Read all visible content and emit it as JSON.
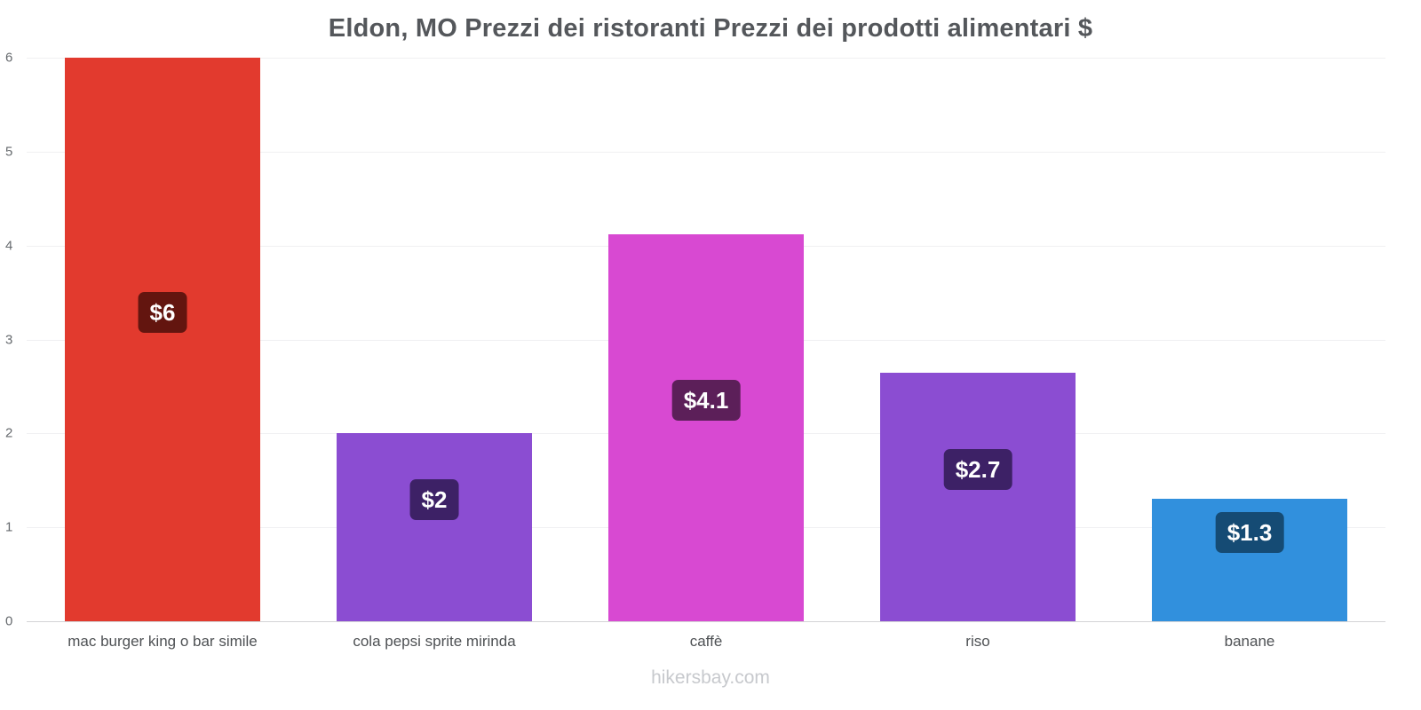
{
  "title": "Eldon, MO Prezzi dei ristoranti Prezzi dei prodotti alimentari $",
  "footer_text": "hikersbay.com",
  "chart_data": {
    "type": "bar",
    "title": "Eldon, MO Prezzi dei ristoranti Prezzi dei prodotti alimentari $",
    "categories": [
      "mac burger king o bar simile",
      "cola pepsi sprite mirinda",
      "caffè",
      "riso",
      "banane"
    ],
    "values": [
      6,
      2,
      4.12,
      2.65,
      1.3
    ],
    "data_labels": [
      "$6",
      "$2",
      "$4.1",
      "$2.7",
      "$1.3"
    ],
    "bar_colors": [
      "#e23a2e",
      "#8b4dd2",
      "#d849d2",
      "#8b4dd2",
      "#3190dd"
    ],
    "label_bg_colors": [
      "#63150f",
      "#3d2166",
      "#5c1f59",
      "#3d2166",
      "#154b74"
    ],
    "ylim": [
      0,
      6
    ],
    "yticks": [
      0,
      1,
      2,
      3,
      4,
      5,
      6
    ],
    "grid": true,
    "legend": "none",
    "xlabel": "",
    "ylabel": "",
    "watermark": "hikersbay.com"
  }
}
